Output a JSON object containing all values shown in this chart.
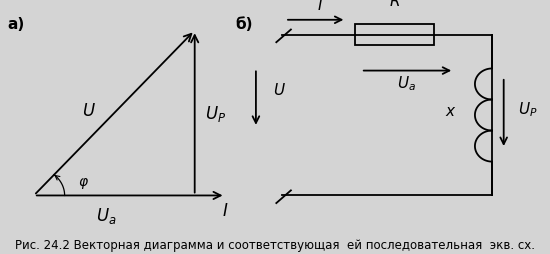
{
  "bg_color": "#d4d4d4",
  "fig_width": 5.5,
  "fig_height": 2.55,
  "dpi": 100,
  "caption": "Рис. 24.2 Векторная диаграмма и соответствующая  ей последовательная  экв. сх.",
  "caption_fontsize": 8.5,
  "label_a": "а)",
  "label_b": "б)",
  "arrow_color": "#000000",
  "line_width": 1.3
}
